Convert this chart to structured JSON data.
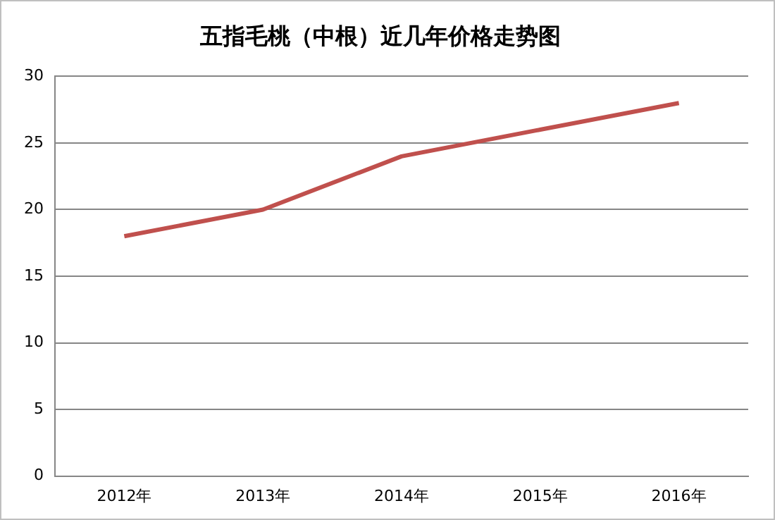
{
  "chart_data": {
    "type": "line",
    "title": "五指毛桃（中根）近几年价格走势图",
    "categories": [
      "2012年",
      "2013年",
      "2014年",
      "2015年",
      "2016年"
    ],
    "series": [
      {
        "color": "#c0504d",
        "values": [
          18,
          20,
          24,
          26,
          28
        ]
      }
    ],
    "ylim": [
      0,
      30
    ],
    "yticks": [
      0,
      5,
      10,
      15,
      20,
      25,
      30
    ],
    "grid": "y",
    "legend": false,
    "marker": "none",
    "line_style": "solid"
  }
}
